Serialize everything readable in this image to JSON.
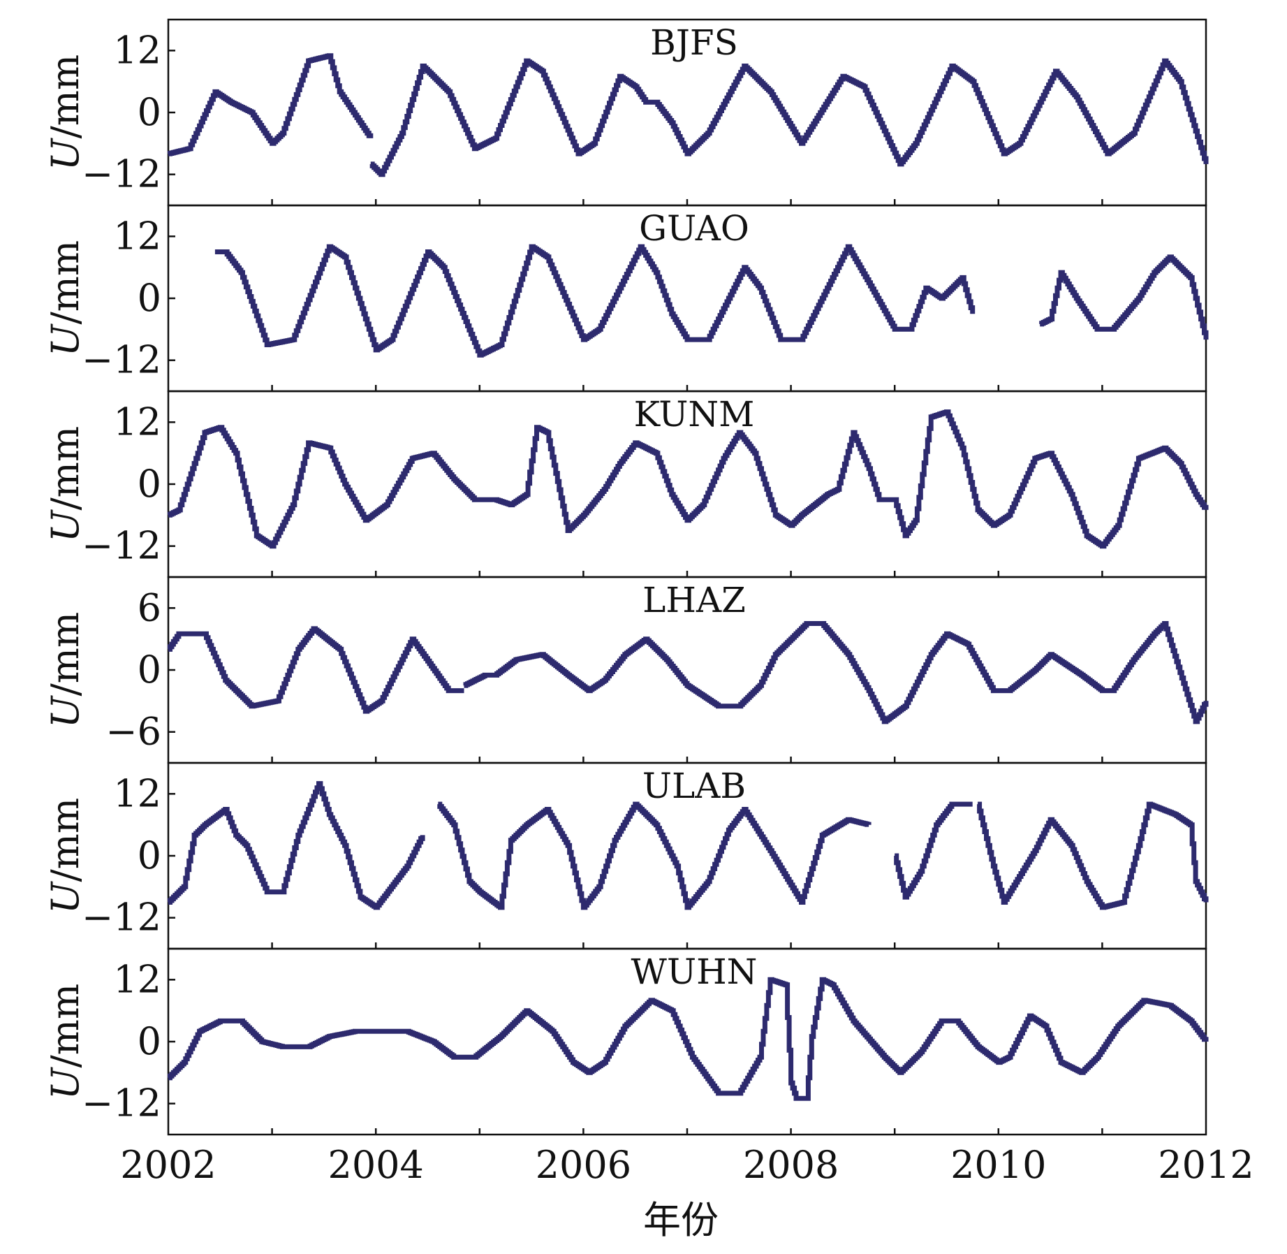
{
  "chart_data": {
    "type": "line",
    "xlabel": "年份",
    "ylabel": "U/mm",
    "xlim": [
      2002,
      2012
    ],
    "x_ticks": [
      "2002",
      "2004",
      "2006",
      "2008",
      "2010",
      "2012"
    ],
    "line_color": "#2d2a6e",
    "grid": false,
    "panels": [
      {
        "title": "BJFS",
        "ylim": [
          -18,
          18
        ],
        "y_ticks": [
          12,
          0,
          -12
        ],
        "y_tick_labels": [
          "12",
          "0",
          "−12"
        ],
        "series": [
          {
            "x": [
              2002.0,
              2002.2,
              2002.45,
              2002.6,
              2002.8,
              2003.0,
              2003.1,
              2003.35,
              2003.55,
              2003.65,
              2003.85,
              2003.95
            ],
            "y": [
              -8,
              -7,
              4,
              2,
              0,
              -6,
              -4,
              10,
              11,
              4,
              -2,
              -5
            ]
          },
          {
            "x": [
              2003.95,
              2004.05,
              2004.25,
              2004.45,
              2004.7,
              2004.95,
              2005.15,
              2005.45,
              2005.6,
              2005.95,
              2006.1,
              2006.35,
              2006.5,
              2006.6,
              2006.7,
              2006.85,
              2007.0,
              2007.2,
              2007.55,
              2007.8,
              2008.1,
              2008.5,
              2008.7,
              2009.05,
              2009.2,
              2009.55,
              2009.75,
              2010.05,
              2010.2,
              2010.55,
              2010.75,
              2011.05,
              2011.3,
              2011.6,
              2011.75,
              2012.0
            ],
            "y": [
              -10,
              -12,
              -4,
              9,
              4,
              -7,
              -5,
              10,
              8,
              -8,
              -6,
              7,
              5,
              2,
              2,
              -2,
              -8,
              -4,
              9,
              4,
              -6,
              7,
              5,
              -10,
              -6,
              9,
              6,
              -8,
              -6,
              8,
              3,
              -8,
              -4,
              10,
              6,
              -10
            ]
          }
        ]
      },
      {
        "title": "GUAO",
        "ylim": [
          -18,
          18
        ],
        "y_ticks": [
          12,
          0,
          -12
        ],
        "y_tick_labels": [
          "12",
          "0",
          "−12"
        ],
        "series": [
          {
            "x": [
              2002.45,
              2002.55,
              2002.7,
              2002.95,
              2003.2,
              2003.55,
              2003.7,
              2004.0,
              2004.15,
              2004.5,
              2004.65,
              2005.0,
              2005.2,
              2005.5,
              2005.65,
              2006.0,
              2006.15,
              2006.55,
              2006.7,
              2006.85,
              2007.0,
              2007.2,
              2007.55,
              2007.7,
              2007.9,
              2008.1,
              2008.25,
              2008.55,
              2008.75,
              2009.0,
              2009.15,
              2009.3,
              2009.45,
              2009.65,
              2009.75
            ],
            "y": [
              9,
              9,
              5,
              -9,
              -8,
              10,
              8,
              -10,
              -8,
              9,
              6,
              -11,
              -9,
              10,
              8,
              -8,
              -6,
              10,
              5,
              -3,
              -8,
              -8,
              6,
              2,
              -8,
              -8,
              -2,
              10,
              3,
              -6,
              -6,
              2,
              0,
              4,
              -3
            ]
          },
          {
            "x": [
              2010.4,
              2010.5,
              2010.6,
              2010.75,
              2010.95,
              2011.1,
              2011.35,
              2011.5,
              2011.65,
              2011.85,
              2012.0
            ],
            "y": [
              -5,
              -4,
              5,
              0,
              -6,
              -6,
              0,
              5,
              8,
              4,
              -8
            ]
          }
        ]
      },
      {
        "title": "KUNM",
        "ylim": [
          -18,
          18
        ],
        "y_ticks": [
          12,
          0,
          -12
        ],
        "y_tick_labels": [
          "12",
          "0",
          "−12"
        ],
        "series": [
          {
            "x": [
              2002.0,
              2002.1,
              2002.35,
              2002.5,
              2002.65,
              2002.85,
              2003.0,
              2003.2,
              2003.35,
              2003.55,
              2003.7,
              2003.9,
              2004.1,
              2004.35,
              2004.55,
              2004.75,
              2004.95,
              2005.15,
              2005.3,
              2005.45,
              2005.55,
              2005.65,
              2005.85,
              2006.0,
              2006.2,
              2006.35,
              2006.5,
              2006.7,
              2006.85,
              2007.0,
              2007.15,
              2007.35,
              2007.5,
              2007.65,
              2007.85,
              2008.0,
              2008.1,
              2008.35,
              2008.45,
              2008.6,
              2008.75,
              2008.85,
              2009.0,
              2009.1,
              2009.2,
              2009.35,
              2009.5,
              2009.65,
              2009.8,
              2009.95,
              2010.1,
              2010.35,
              2010.5,
              2010.7,
              2010.85,
              2011.0,
              2011.15,
              2011.35,
              2011.6,
              2011.75,
              2011.9,
              2012.0
            ],
            "y": [
              -6,
              -5,
              10,
              11,
              6,
              -10,
              -12,
              -4,
              8,
              7,
              0,
              -7,
              -4,
              5,
              6,
              1,
              -3,
              -3,
              -4,
              -2,
              11,
              10,
              -9,
              -6,
              -1,
              4,
              8,
              6,
              -2,
              -7,
              -4,
              5,
              10,
              6,
              -6,
              -8,
              -6,
              -2,
              -1,
              10,
              3,
              -3,
              -3,
              -10,
              -7,
              13,
              14,
              7,
              -5,
              -8,
              -6,
              5,
              6,
              -2,
              -10,
              -12,
              -8,
              5,
              7,
              4,
              -2,
              -5
            ]
          }
        ]
      },
      {
        "title": "LHAZ",
        "ylim": [
          -9,
          9
        ],
        "y_ticks": [
          6,
          0,
          -6
        ],
        "y_tick_labels": [
          "6",
          "0",
          "−6"
        ],
        "series": [
          {
            "x": [
              2002.0,
              2002.1,
              2002.35,
              2002.55,
              2002.8,
              2003.05,
              2003.25,
              2003.4,
              2003.65,
              2003.9,
              2004.05,
              2004.2,
              2004.35,
              2004.7,
              2004.85
            ],
            "y": [
              2,
              3.5,
              3.5,
              -1,
              -3.5,
              -3,
              2,
              4,
              2,
              -4,
              -3,
              0,
              3,
              -2,
              -2
            ]
          },
          {
            "x": [
              2004.85,
              2004.95,
              2005.05,
              2005.15,
              2005.35,
              2005.6,
              2005.85,
              2006.05,
              2006.2,
              2006.4,
              2006.6,
              2006.8,
              2007.0,
              2007.3,
              2007.5,
              2007.7,
              2007.85,
              2008.15,
              2008.3,
              2008.55,
              2008.75,
              2008.9,
              2009.1,
              2009.35,
              2009.5,
              2009.7,
              2009.95,
              2010.1,
              2010.35,
              2010.5,
              2010.8,
              2011.0,
              2011.1,
              2011.3,
              2011.5,
              2011.6,
              2011.9,
              2012.0
            ],
            "y": [
              -1.5,
              -1,
              -0.5,
              -0.5,
              1,
              1.5,
              -0.5,
              -2,
              -1,
              1.5,
              3,
              1,
              -1.5,
              -3.5,
              -3.5,
              -1.5,
              1.5,
              4.5,
              4.5,
              1.5,
              -2,
              -5,
              -3.5,
              1.5,
              3.5,
              2.5,
              -2,
              -2,
              0,
              1.5,
              -0.5,
              -2,
              -2,
              1,
              3.5,
              4.5,
              -5,
              -3
            ]
          }
        ]
      },
      {
        "title": "ULAB",
        "ylim": [
          -18,
          18
        ],
        "y_ticks": [
          12,
          0,
          -12
        ],
        "y_tick_labels": [
          "12",
          "0",
          "−12"
        ],
        "series": [
          {
            "x": [
              2002.0,
              2002.15,
              2002.25,
              2002.35,
              2002.55,
              2002.65,
              2002.75,
              2002.95,
              2003.1,
              2003.25,
              2003.45,
              2003.55,
              2003.7,
              2003.85,
              2004.0,
              2004.15,
              2004.3,
              2004.45
            ],
            "y": [
              -9,
              -6,
              4,
              6,
              9,
              4,
              2,
              -7,
              -7,
              4,
              14,
              8,
              2,
              -8,
              -10,
              -6,
              -2,
              4
            ]
          },
          {
            "x": [
              2004.6,
              2004.75,
              2004.9,
              2005.0,
              2005.2,
              2005.3,
              2005.45,
              2005.65,
              2005.85,
              2006.0,
              2006.15,
              2006.3,
              2006.5,
              2006.7,
              2006.9,
              2007.0,
              2007.2,
              2007.4,
              2007.55,
              2007.8,
              2008.1,
              2008.3,
              2008.55,
              2008.75
            ],
            "y": [
              10,
              6,
              -5,
              -7,
              -10,
              3,
              6,
              9,
              2,
              -10,
              -6,
              3,
              10,
              6,
              -2,
              -10,
              -5,
              5,
              9,
              1,
              -9,
              4,
              7,
              6
            ]
          },
          {
            "x": [
              2009.0,
              2009.1,
              2009.25,
              2009.4,
              2009.55,
              2009.75
            ],
            "y": [
              0,
              -8,
              -3,
              6,
              10,
              10
            ]
          },
          {
            "x": [
              2009.8,
              2009.95,
              2010.05,
              2010.2,
              2010.35,
              2010.5,
              2010.7,
              2010.85,
              2011.0,
              2011.2,
              2011.35,
              2011.45,
              2011.7,
              2011.85,
              2011.9,
              2012.0
            ],
            "y": [
              10,
              -2,
              -9,
              -4,
              1,
              7,
              2,
              -5,
              -10,
              -9,
              2,
              10,
              8,
              6,
              -5,
              -9
            ]
          }
        ]
      },
      {
        "title": "WUHN",
        "ylim": [
          -18,
          18
        ],
        "y_ticks": [
          12,
          0,
          -12
        ],
        "y_tick_labels": [
          "12",
          "0",
          "−12"
        ],
        "series": [
          {
            "x": [
              2002.0,
              2002.15,
              2002.3,
              2002.5,
              2002.7,
              2002.9,
              2003.1,
              2003.35,
              2003.55,
              2003.8,
              2004.0,
              2004.3,
              2004.55,
              2004.75,
              2004.95,
              2005.2,
              2005.45,
              2005.7,
              2005.9,
              2006.05,
              2006.2,
              2006.4,
              2006.65,
              2006.85,
              2007.05,
              2007.3,
              2007.5,
              2007.7,
              2007.8,
              2007.95,
              2008.0,
              2008.05,
              2008.15,
              2008.2,
              2008.3,
              2008.4,
              2008.6,
              2008.9,
              2009.05,
              2009.25,
              2009.45,
              2009.6,
              2009.8,
              2010.0,
              2010.1,
              2010.3,
              2010.45,
              2010.6,
              2010.8,
              2010.95,
              2011.15,
              2011.4,
              2011.65,
              2011.85,
              2012.0
            ],
            "y": [
              -7,
              -4,
              2,
              4,
              4,
              0,
              -1,
              -1,
              1,
              2,
              2,
              2,
              0,
              -3,
              -3,
              1,
              6,
              2,
              -4,
              -6,
              -4,
              3,
              8,
              6,
              -3,
              -10,
              -10,
              -3,
              12,
              11,
              -8,
              -11,
              -11,
              1,
              12,
              11,
              4,
              -3,
              -6,
              -2,
              4,
              4,
              -1,
              -4,
              -3,
              5,
              3,
              -4,
              -6,
              -3,
              3,
              8,
              7,
              4,
              0
            ]
          }
        ]
      }
    ]
  }
}
